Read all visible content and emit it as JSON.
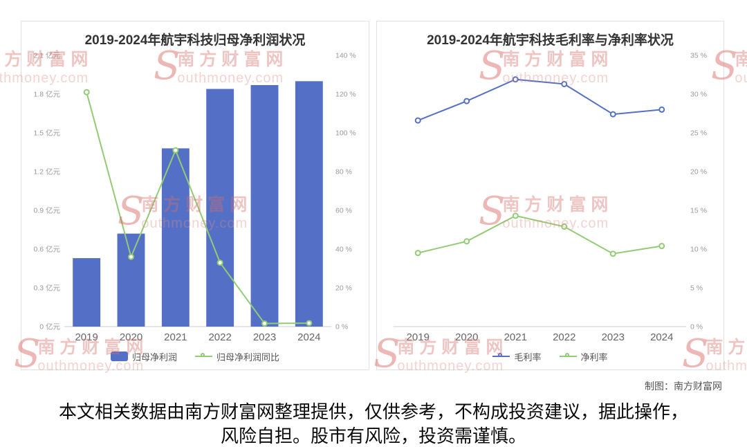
{
  "credit": "制图：南方财富网",
  "disclaimer": "本文相关数据由南方财富网整理提供，仅供参考，不构成投资建议，据此操作，风险自担。股市有风险，投资需谨慎。",
  "watermark": {
    "initial": "S",
    "cn": "南方财富网",
    "en": "outhmoney.com"
  },
  "chart_data": [
    {
      "type": "bar+line",
      "title": "2019-2024年航宇科技归母净利润状况",
      "categories": [
        "2019",
        "2020",
        "2021",
        "2022",
        "2023",
        "2024"
      ],
      "series": [
        {
          "name": "归母净利润",
          "type": "bar",
          "axis": "left",
          "unit": "亿元",
          "color": "#5470c6",
          "values": [
            0.53,
            0.72,
            1.38,
            1.84,
            1.87,
            1.9
          ]
        },
        {
          "name": "归母净利润同比",
          "type": "line",
          "axis": "right",
          "unit": "%",
          "color": "#91cc75",
          "values": [
            121,
            36,
            91,
            33,
            1.6,
            1.8
          ]
        }
      ],
      "left_axis": {
        "min": 0,
        "max": 2.1,
        "step": 0.3,
        "suffix": " 亿元"
      },
      "right_axis": {
        "min": 0,
        "max": 140,
        "step": 20,
        "suffix": " %"
      },
      "legend_position": "bottom",
      "grid": false
    },
    {
      "type": "line",
      "title": "2019-2024年航宇科技毛利率与净利率状况",
      "categories": [
        "2019",
        "2020",
        "2021",
        "2022",
        "2023",
        "2024"
      ],
      "series": [
        {
          "name": "毛利率",
          "type": "line",
          "axis": "right",
          "unit": "%",
          "color": "#5470c6",
          "values": [
            26.6,
            29.1,
            31.9,
            31.3,
            27.4,
            28.0
          ]
        },
        {
          "name": "净利率",
          "type": "line",
          "axis": "right",
          "unit": "%",
          "color": "#91cc75",
          "values": [
            9.5,
            11.0,
            14.3,
            12.9,
            9.4,
            10.4
          ]
        }
      ],
      "right_axis": {
        "min": 0,
        "max": 35,
        "step": 5,
        "suffix": " %"
      },
      "legend_position": "bottom",
      "grid": false
    }
  ]
}
